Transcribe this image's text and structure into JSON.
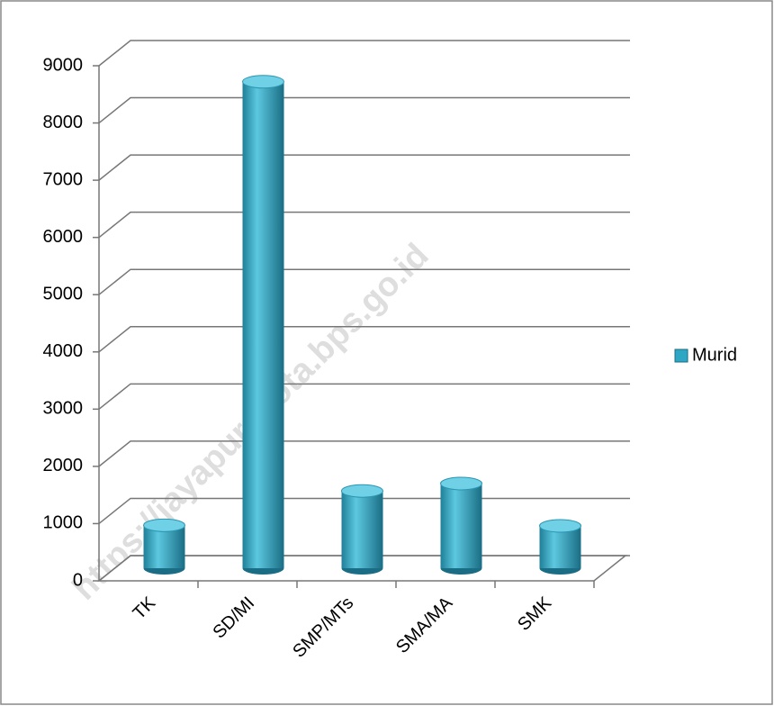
{
  "chart_data": {
    "type": "bar3d",
    "categories": [
      "TK",
      "SD/MI",
      "SMP/MTs",
      "SMA/MA",
      "SMK"
    ],
    "series": [
      {
        "name": "Murid",
        "color": "#2fa7c4",
        "values": [
          750,
          8500,
          1350,
          1480,
          740
        ]
      }
    ],
    "ylim": [
      0,
      9000
    ],
    "yticks": [
      0,
      1000,
      2000,
      3000,
      4000,
      5000,
      6000,
      7000,
      8000,
      9000
    ],
    "grid": true,
    "legend": "right",
    "watermark": "https://jayapurakota.bps.go.id"
  }
}
